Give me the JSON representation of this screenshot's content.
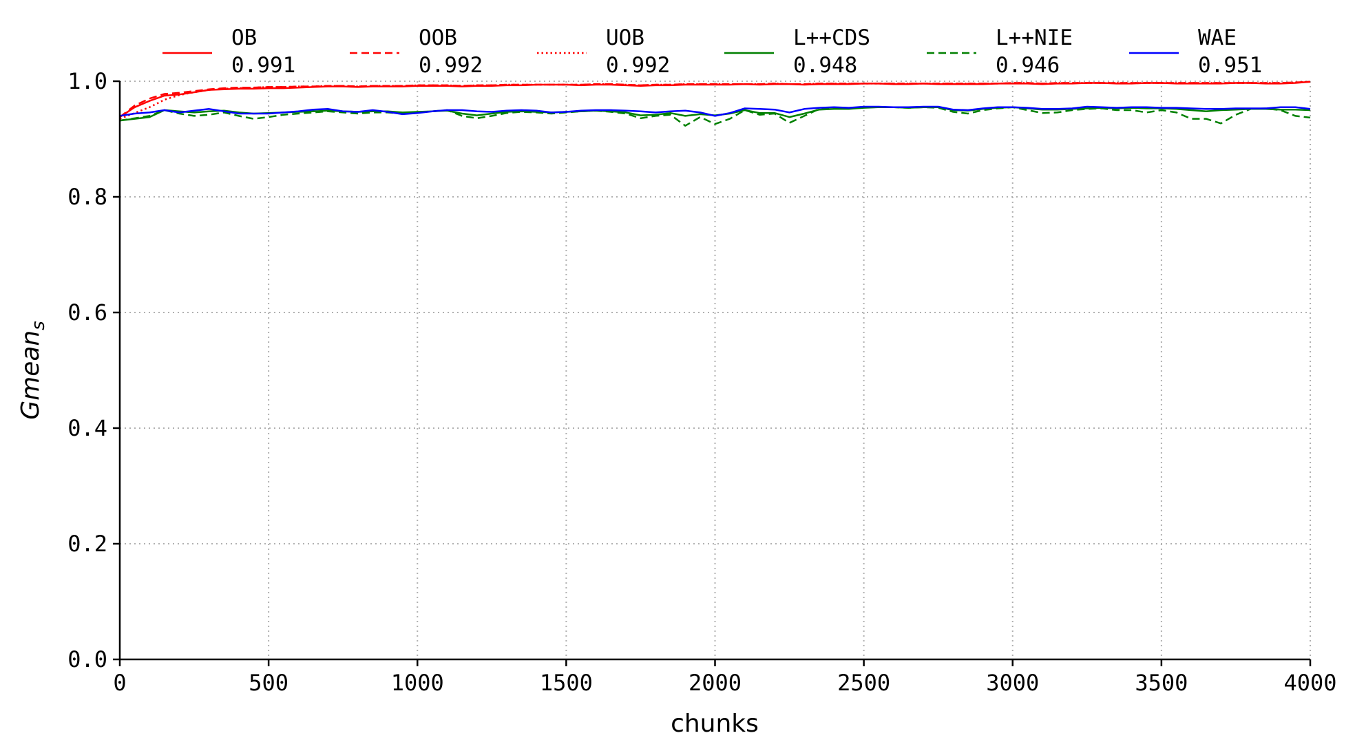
{
  "chart_data": {
    "type": "line",
    "title": "",
    "xlabel": "chunks",
    "ylabel_main": "Gmean",
    "ylabel_sub": "s",
    "xlim": [
      0,
      4000
    ],
    "ylim": [
      0.0,
      1.0
    ],
    "xticks": [
      0,
      500,
      1000,
      1500,
      2000,
      2500,
      3000,
      3500,
      4000
    ],
    "yticks": [
      0.0,
      0.2,
      0.4,
      0.6,
      0.8,
      1.0
    ],
    "xtick_labels": [
      "0",
      "500",
      "1000",
      "1500",
      "2000",
      "2500",
      "3000",
      "3500",
      "4000"
    ],
    "ytick_labels": [
      "0.0",
      "0.2",
      "0.4",
      "0.6",
      "0.8",
      "1.0"
    ],
    "grid": true,
    "legend_position": "top",
    "x": [
      0,
      50,
      100,
      150,
      200,
      250,
      300,
      350,
      400,
      450,
      500,
      550,
      600,
      650,
      700,
      750,
      800,
      850,
      900,
      950,
      1000,
      1050,
      1100,
      1150,
      1200,
      1250,
      1300,
      1350,
      1400,
      1450,
      1500,
      1550,
      1600,
      1650,
      1700,
      1750,
      1800,
      1850,
      1900,
      1950,
      2000,
      2050,
      2100,
      2150,
      2200,
      2250,
      2300,
      2350,
      2400,
      2450,
      2500,
      2550,
      2600,
      2650,
      2700,
      2750,
      2800,
      2850,
      2900,
      2950,
      3000,
      3050,
      3100,
      3150,
      3200,
      3250,
      3300,
      3350,
      3400,
      3450,
      3500,
      3550,
      3600,
      3650,
      3700,
      3750,
      3800,
      3850,
      3900,
      3950,
      4000
    ],
    "series": [
      {
        "name": "OB",
        "score": "0.991",
        "color": "#ff0000",
        "dash": "solid",
        "values": [
          0.938,
          0.955,
          0.966,
          0.975,
          0.977,
          0.981,
          0.985,
          0.986,
          0.987,
          0.987,
          0.988,
          0.988,
          0.989,
          0.99,
          0.991,
          0.991,
          0.99,
          0.991,
          0.991,
          0.991,
          0.992,
          0.992,
          0.992,
          0.991,
          0.992,
          0.992,
          0.993,
          0.993,
          0.994,
          0.994,
          0.994,
          0.993,
          0.994,
          0.994,
          0.993,
          0.992,
          0.993,
          0.993,
          0.994,
          0.994,
          0.994,
          0.994,
          0.995,
          0.994,
          0.995,
          0.995,
          0.994,
          0.995,
          0.995,
          0.995,
          0.996,
          0.996,
          0.995,
          0.995,
          0.996,
          0.995,
          0.995,
          0.995,
          0.995,
          0.996,
          0.996,
          0.996,
          0.995,
          0.996,
          0.996,
          0.997,
          0.997,
          0.996,
          0.996,
          0.997,
          0.997,
          0.996,
          0.996,
          0.996,
          0.996,
          0.997,
          0.997,
          0.996,
          0.996,
          0.997,
          0.999
        ]
      },
      {
        "name": "OOB",
        "score": "0.992",
        "color": "#ff0000",
        "dash": "dashed",
        "values": [
          0.938,
          0.958,
          0.97,
          0.978,
          0.98,
          0.983,
          0.986,
          0.988,
          0.989,
          0.989,
          0.99,
          0.99,
          0.991,
          0.991,
          0.992,
          0.992,
          0.991,
          0.992,
          0.992,
          0.992,
          0.993,
          0.993,
          0.993,
          0.992,
          0.993,
          0.993,
          0.994,
          0.994,
          0.994,
          0.994,
          0.994,
          0.994,
          0.995,
          0.995,
          0.994,
          0.993,
          0.994,
          0.994,
          0.995,
          0.995,
          0.995,
          0.995,
          0.995,
          0.995,
          0.996,
          0.995,
          0.995,
          0.996,
          0.996,
          0.996,
          0.996,
          0.996,
          0.996,
          0.996,
          0.996,
          0.996,
          0.996,
          0.996,
          0.996,
          0.996,
          0.997,
          0.997,
          0.996,
          0.997,
          0.997,
          0.997,
          0.997,
          0.997,
          0.997,
          0.997,
          0.997,
          0.997,
          0.997,
          0.997,
          0.997,
          0.997,
          0.997,
          0.997,
          0.997,
          0.998,
          0.999
        ]
      },
      {
        "name": "UOB",
        "score": "0.992",
        "color": "#ff0000",
        "dash": "dotted",
        "values": [
          0.935,
          0.945,
          0.955,
          0.968,
          0.976,
          0.981,
          0.985,
          0.987,
          0.988,
          0.989,
          0.99,
          0.99,
          0.991,
          0.991,
          0.992,
          0.992,
          0.991,
          0.992,
          0.992,
          0.992,
          0.993,
          0.993,
          0.993,
          0.992,
          0.993,
          0.993,
          0.994,
          0.994,
          0.994,
          0.994,
          0.994,
          0.994,
          0.995,
          0.995,
          0.994,
          0.993,
          0.994,
          0.994,
          0.995,
          0.995,
          0.995,
          0.995,
          0.995,
          0.995,
          0.996,
          0.995,
          0.995,
          0.996,
          0.996,
          0.996,
          0.996,
          0.996,
          0.996,
          0.996,
          0.996,
          0.996,
          0.996,
          0.996,
          0.996,
          0.996,
          0.997,
          0.997,
          0.996,
          0.997,
          0.997,
          0.997,
          0.997,
          0.997,
          0.997,
          0.997,
          0.997,
          0.997,
          0.997,
          0.997,
          0.997,
          0.997,
          0.997,
          0.997,
          0.997,
          0.998,
          0.999
        ]
      },
      {
        "name": "L++CDS",
        "score": "0.948",
        "color": "#008000",
        "dash": "solid",
        "values": [
          0.932,
          0.935,
          0.938,
          0.95,
          0.948,
          0.946,
          0.948,
          0.949,
          0.946,
          0.944,
          0.945,
          0.946,
          0.947,
          0.948,
          0.949,
          0.948,
          0.947,
          0.948,
          0.948,
          0.946,
          0.947,
          0.948,
          0.949,
          0.944,
          0.941,
          0.944,
          0.947,
          0.948,
          0.947,
          0.946,
          0.947,
          0.948,
          0.949,
          0.948,
          0.946,
          0.941,
          0.942,
          0.945,
          0.94,
          0.943,
          0.941,
          0.944,
          0.95,
          0.945,
          0.945,
          0.938,
          0.944,
          0.951,
          0.952,
          0.952,
          0.954,
          0.955,
          0.955,
          0.954,
          0.955,
          0.955,
          0.95,
          0.949,
          0.952,
          0.954,
          0.955,
          0.953,
          0.951,
          0.951,
          0.952,
          0.953,
          0.954,
          0.953,
          0.954,
          0.953,
          0.953,
          0.952,
          0.95,
          0.948,
          0.95,
          0.951,
          0.952,
          0.952,
          0.951,
          0.951,
          0.95
        ]
      },
      {
        "name": "L++NIE",
        "score": "0.946",
        "color": "#008000",
        "dash": "dashed",
        "values": [
          0.932,
          0.936,
          0.94,
          0.95,
          0.944,
          0.94,
          0.942,
          0.946,
          0.94,
          0.935,
          0.938,
          0.942,
          0.944,
          0.946,
          0.948,
          0.946,
          0.944,
          0.946,
          0.946,
          0.944,
          0.946,
          0.948,
          0.95,
          0.94,
          0.936,
          0.94,
          0.945,
          0.947,
          0.946,
          0.944,
          0.946,
          0.948,
          0.949,
          0.947,
          0.944,
          0.936,
          0.94,
          0.942,
          0.923,
          0.938,
          0.926,
          0.935,
          0.95,
          0.942,
          0.944,
          0.928,
          0.94,
          0.952,
          0.953,
          0.953,
          0.955,
          0.955,
          0.955,
          0.954,
          0.955,
          0.954,
          0.947,
          0.944,
          0.95,
          0.953,
          0.955,
          0.95,
          0.945,
          0.946,
          0.95,
          0.952,
          0.953,
          0.95,
          0.95,
          0.946,
          0.95,
          0.946,
          0.935,
          0.935,
          0.927,
          0.942,
          0.952,
          0.953,
          0.95,
          0.94,
          0.937
        ]
      },
      {
        "name": "WAE",
        "score": "0.951",
        "color": "#0000ff",
        "dash": "solid",
        "values": [
          0.94,
          0.944,
          0.946,
          0.95,
          0.946,
          0.949,
          0.952,
          0.948,
          0.944,
          0.944,
          0.944,
          0.946,
          0.948,
          0.951,
          0.952,
          0.948,
          0.947,
          0.95,
          0.947,
          0.943,
          0.945,
          0.948,
          0.95,
          0.95,
          0.948,
          0.947,
          0.949,
          0.95,
          0.949,
          0.946,
          0.947,
          0.949,
          0.95,
          0.95,
          0.949,
          0.948,
          0.946,
          0.948,
          0.949,
          0.946,
          0.94,
          0.945,
          0.953,
          0.952,
          0.951,
          0.946,
          0.952,
          0.954,
          0.955,
          0.954,
          0.956,
          0.956,
          0.955,
          0.955,
          0.956,
          0.956,
          0.951,
          0.95,
          0.953,
          0.955,
          0.955,
          0.954,
          0.952,
          0.952,
          0.953,
          0.956,
          0.955,
          0.954,
          0.955,
          0.955,
          0.954,
          0.954,
          0.953,
          0.952,
          0.952,
          0.953,
          0.953,
          0.953,
          0.955,
          0.955,
          0.952
        ]
      }
    ]
  }
}
